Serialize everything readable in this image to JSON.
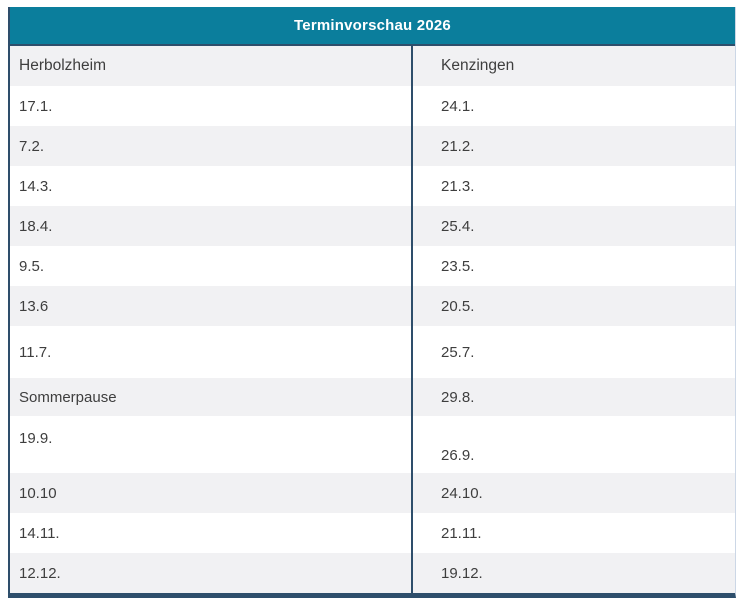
{
  "title": "Terminvorschau 2026",
  "columns": [
    "Herbolzheim",
    "Kenzingen"
  ],
  "rows": [
    [
      "17.1.",
      "24.1."
    ],
    [
      "7.2.",
      "21.2."
    ],
    [
      "14.3.",
      "21.3."
    ],
    [
      "18.4.",
      "25.4."
    ],
    [
      "9.5.",
      "23.5."
    ],
    [
      "13.6",
      "20.5."
    ],
    [
      "11.7.",
      "25.7."
    ],
    [
      "Sommerpause",
      "29.8."
    ],
    [
      "19.9.",
      "26.9."
    ],
    [
      "10.10",
      "24.10."
    ],
    [
      "14.11.",
      "21.11."
    ],
    [
      "12.12.",
      "19.12."
    ]
  ],
  "colors": {
    "header_bg": "#0b7e9c",
    "border_dark": "#2e4e6b",
    "border_light": "#ccd7e6",
    "row_alt_bg": "#f1f1f3",
    "text": "#3e3e3e",
    "title_text": "#ffffff"
  }
}
